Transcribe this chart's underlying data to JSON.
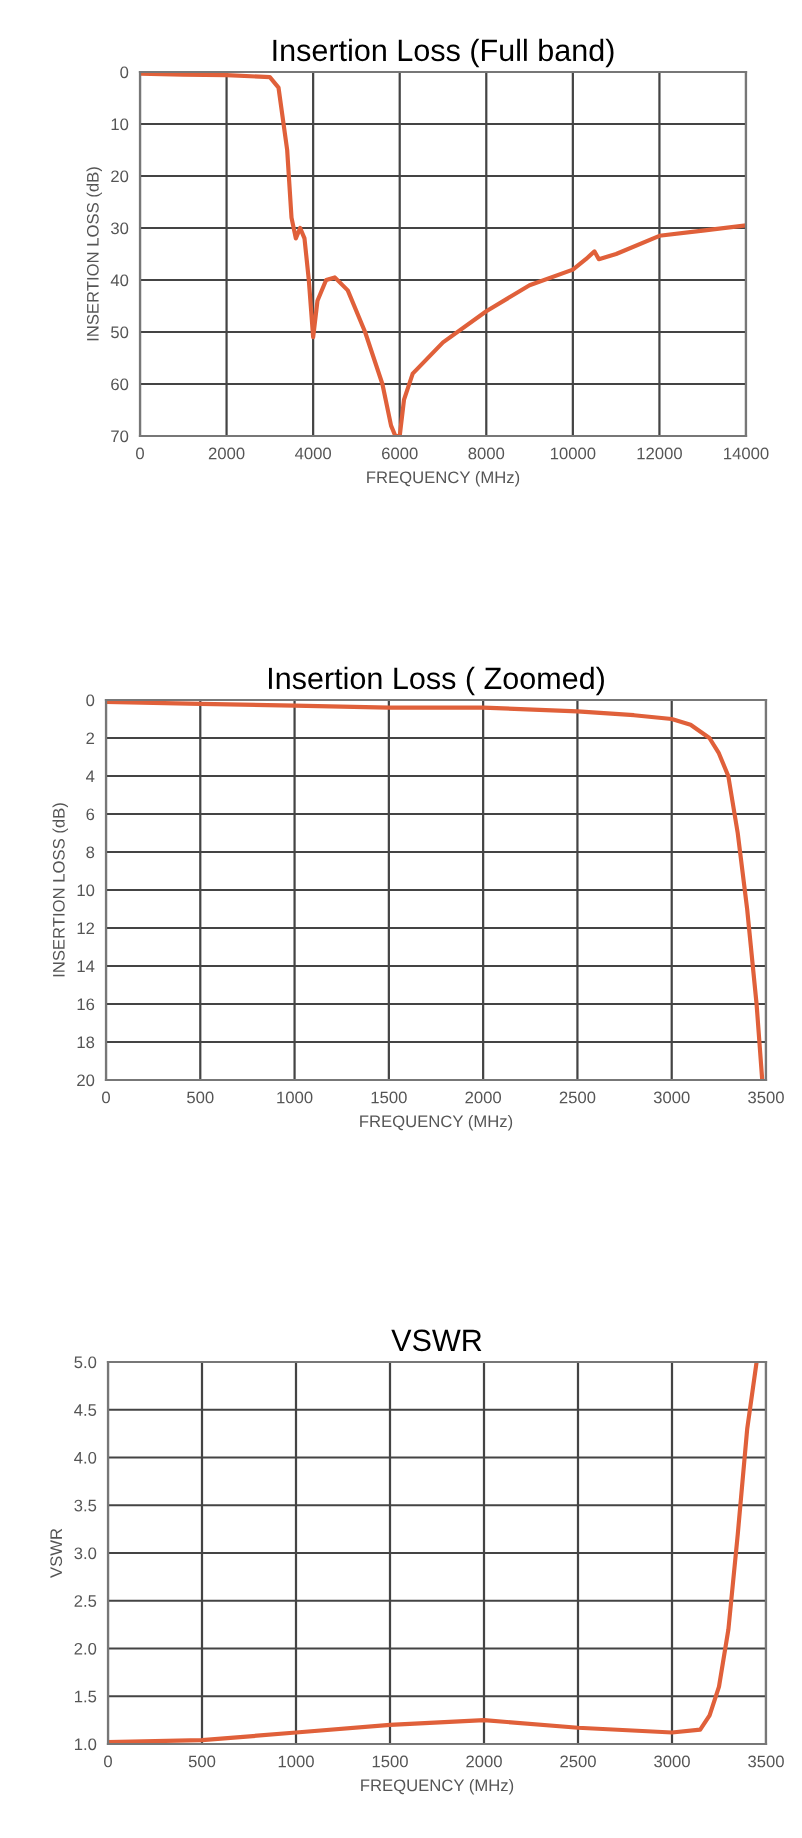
{
  "chart_data": [
    {
      "type": "line",
      "title": "Insertion Loss (Full band)",
      "xlabel": "FREQUENCY (MHz)",
      "ylabel": "INSERTION LOSS (dB)",
      "xlim": [
        0,
        14000
      ],
      "ylim": [
        70,
        0
      ],
      "xticks": [
        0,
        2000,
        4000,
        6000,
        8000,
        10000,
        12000,
        14000
      ],
      "yticks": [
        0,
        10,
        20,
        30,
        40,
        50,
        60,
        70
      ],
      "grid": true,
      "series": [
        {
          "color": "#e0603a",
          "x": [
            0,
            1000,
            2000,
            3000,
            3200,
            3400,
            3500,
            3600,
            3700,
            3800,
            3900,
            4000,
            4100,
            4300,
            4500,
            4800,
            5200,
            5600,
            5800,
            5900,
            6000,
            6100,
            6300,
            7000,
            8000,
            9000,
            10000,
            10300,
            10500,
            10600,
            11000,
            12000,
            13000,
            14000
          ],
          "values": [
            0.3,
            0.5,
            0.6,
            1,
            3,
            15,
            28,
            32,
            30,
            32,
            40,
            51,
            44,
            40,
            39.5,
            42,
            50,
            60,
            68,
            70,
            70,
            63,
            58,
            52,
            46,
            41,
            38,
            36,
            34.5,
            36,
            35,
            31.5,
            30.5,
            29.5
          ]
        }
      ]
    },
    {
      "type": "line",
      "title": "Insertion Loss ( Zoomed)",
      "xlabel": "FREQUENCY (MHz)",
      "ylabel": "INSERTION LOSS (dB)",
      "xlim": [
        0,
        3500
      ],
      "ylim": [
        20,
        0
      ],
      "xticks": [
        0,
        500,
        1000,
        1500,
        2000,
        2500,
        3000,
        3500
      ],
      "yticks": [
        0,
        2,
        4,
        6,
        8,
        10,
        12,
        14,
        16,
        18,
        20
      ],
      "grid": true,
      "series": [
        {
          "color": "#e0603a",
          "x": [
            0,
            500,
            1000,
            1500,
            2000,
            2500,
            2800,
            3000,
            3100,
            3200,
            3250,
            3300,
            3350,
            3400,
            3450,
            3480
          ],
          "values": [
            0.1,
            0.2,
            0.3,
            0.4,
            0.4,
            0.6,
            0.8,
            1,
            1.3,
            2,
            2.8,
            4,
            7,
            11,
            16,
            20
          ]
        }
      ]
    },
    {
      "type": "line",
      "title": "VSWR",
      "xlabel": "FREQUENCY (MHz)",
      "ylabel": "VSWR",
      "xlim": [
        0,
        3500
      ],
      "ylim": [
        1,
        5
      ],
      "xticks": [
        0,
        500,
        1000,
        1500,
        2000,
        2500,
        3000,
        3500
      ],
      "yticks": [
        {
          "value": 1,
          "label": "1.0"
        },
        1.5,
        {
          "value": 2,
          "label": "2.0"
        },
        2.5,
        {
          "value": 3,
          "label": "3.0"
        },
        3.5,
        {
          "value": 4,
          "label": "4.0"
        },
        4.5,
        {
          "value": 5,
          "label": "5.0"
        }
      ],
      "grid": true,
      "series": [
        {
          "color": "#e0603a",
          "x": [
            0,
            500,
            1000,
            1500,
            2000,
            2500,
            3000,
            3150,
            3200,
            3250,
            3300,
            3350,
            3400,
            3450
          ],
          "values": [
            1.02,
            1.04,
            1.12,
            1.2,
            1.25,
            1.17,
            1.12,
            1.15,
            1.3,
            1.6,
            2.2,
            3.2,
            4.3,
            5.0
          ]
        }
      ]
    }
  ]
}
